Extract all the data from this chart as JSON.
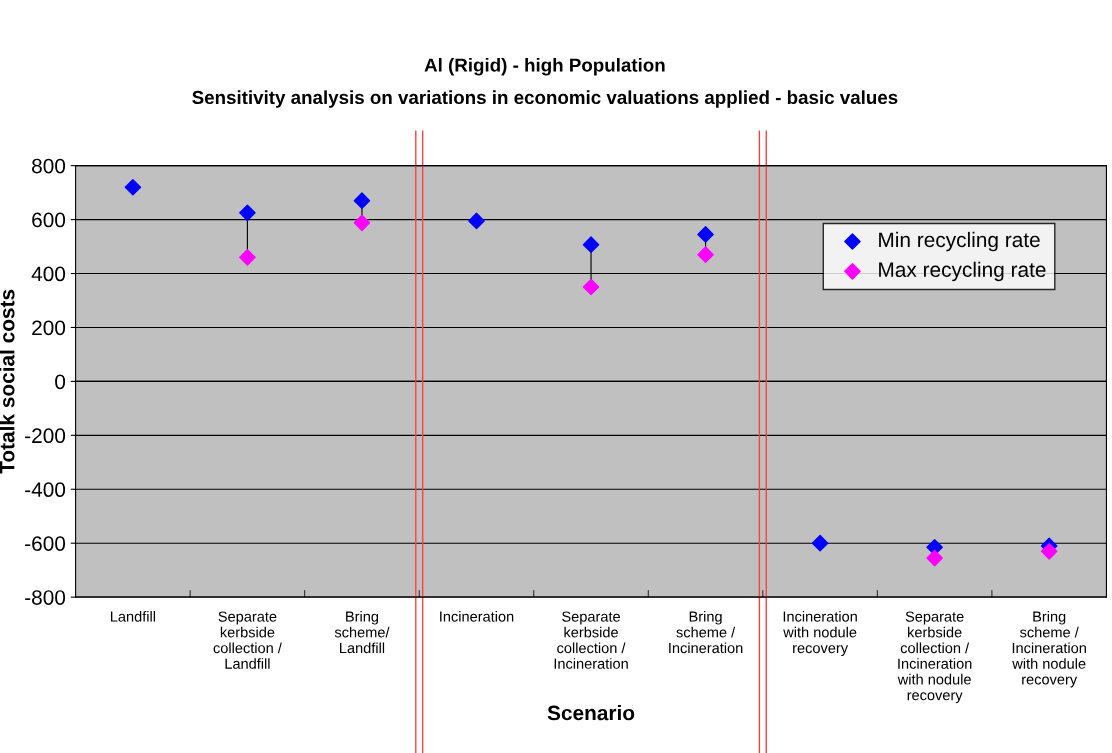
{
  "chart_data": {
    "type": "scatter",
    "title": "Al (Rigid) - high Population",
    "subtitle": "Sensitivity analysis on variations in economic valuations applied - basic values",
    "xlabel": "Scenario",
    "ylabel": "Totalk social costs",
    "categories": [
      "Landfill",
      "Separate\nkerbside\ncollection /\nLandfill",
      "Bring\nscheme/\nLandfill",
      "Incineration",
      "Separate\nkerbside\ncollection /\nIncineration",
      "Bring\nscheme /\nIncineration",
      "Incineration\nwith nodule\nrecovery",
      "Separate\nkerbside\ncollection /\nIncineration\nwith nodule\nrecovery",
      "Bring\nscheme /\nIncineration\nwith nodule\nrecovery"
    ],
    "series": [
      {
        "name": "Min recycling rate",
        "color": "#0000ff",
        "values": [
          720,
          625,
          670,
          595,
          507,
          545,
          -600,
          -615,
          -610
        ]
      },
      {
        "name": "Max recycling rate",
        "color": "#ff00ff",
        "values": [
          null,
          460,
          588,
          null,
          350,
          470,
          null,
          -655,
          -630
        ]
      }
    ],
    "ylim": [
      -800,
      800
    ],
    "yticks": [
      -800,
      -600,
      -400,
      -200,
      0,
      200,
      400,
      600,
      800
    ],
    "grid": "y",
    "legend": "top right",
    "marker": "diamond"
  }
}
